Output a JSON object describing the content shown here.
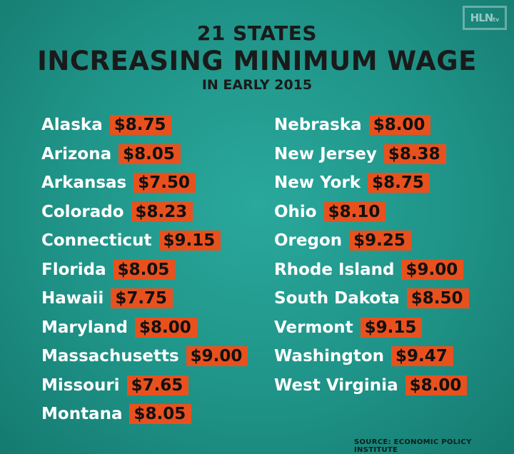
{
  "logo": {
    "text": "HLN",
    "sub": "tv"
  },
  "title": {
    "top": "21 STATES",
    "main": "INCREASING MINIMUM WAGE",
    "sub": "IN EARLY 2015"
  },
  "states_left": [
    {
      "state": "Alaska",
      "wage": "$8.75"
    },
    {
      "state": "Arizona",
      "wage": "$8.05"
    },
    {
      "state": "Arkansas",
      "wage": "$7.50"
    },
    {
      "state": "Colorado",
      "wage": "$8.23"
    },
    {
      "state": "Connecticut",
      "wage": "$9.15"
    },
    {
      "state": "Florida",
      "wage": "$8.05"
    },
    {
      "state": "Hawaii",
      "wage": "$7.75"
    },
    {
      "state": "Maryland",
      "wage": "$8.00"
    },
    {
      "state": "Massachusetts",
      "wage": "$9.00"
    },
    {
      "state": "Missouri",
      "wage": "$7.65"
    },
    {
      "state": "Montana",
      "wage": "$8.05"
    }
  ],
  "states_right": [
    {
      "state": "Nebraska",
      "wage": "$8.00"
    },
    {
      "state": "New Jersey",
      "wage": "$8.38"
    },
    {
      "state": "New York",
      "wage": "$8.75"
    },
    {
      "state": "Ohio",
      "wage": "$8.10"
    },
    {
      "state": "Oregon",
      "wage": "$9.25"
    },
    {
      "state": "Rhode Island",
      "wage": "$9.00"
    },
    {
      "state": "South Dakota",
      "wage": "$8.50"
    },
    {
      "state": "Vermont",
      "wage": "$9.15"
    },
    {
      "state": "Washington",
      "wage": "$9.47"
    },
    {
      "state": "West Virginia",
      "wage": "$8.00"
    }
  ],
  "source": "SOURCE: ECONOMIC POLICY INSTITUTE",
  "colors": {
    "background": "#1f9387",
    "wage_badge": "#e8511e",
    "title_text": "#1a1a1a",
    "state_text": "#ffffff"
  }
}
